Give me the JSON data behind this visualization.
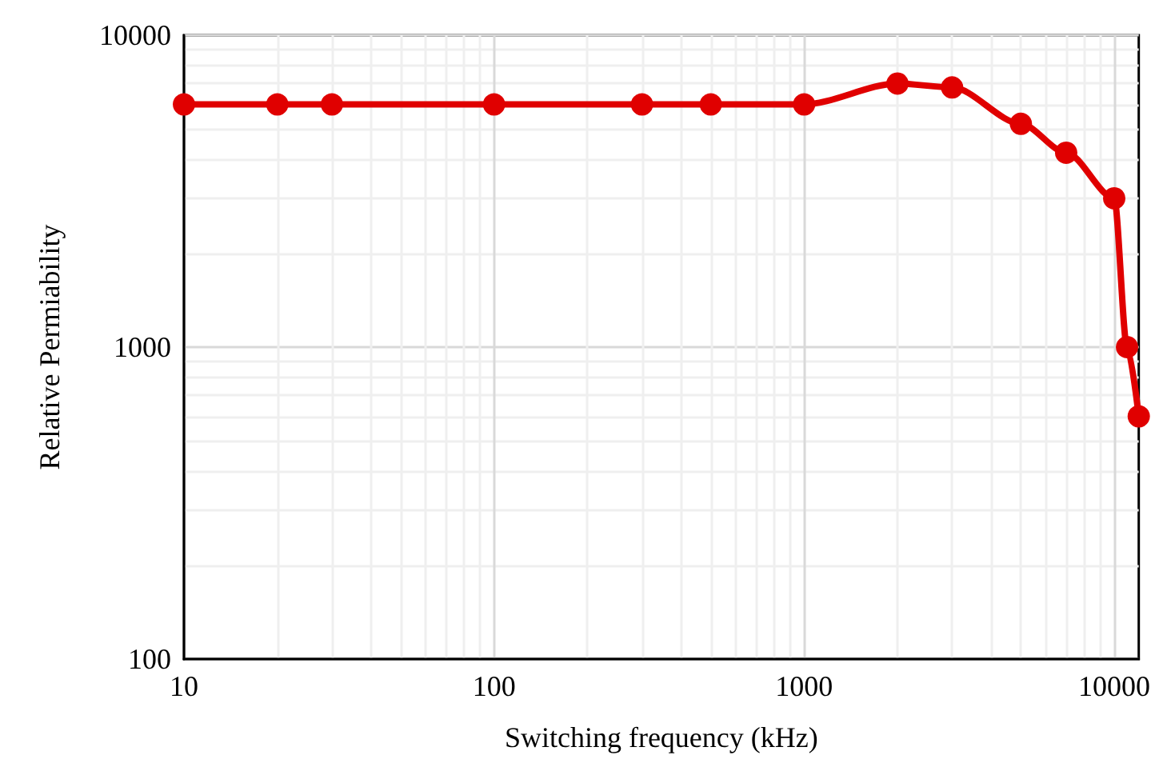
{
  "chart_data": {
    "type": "line",
    "xlabel": "Switching frequency (kHz)",
    "ylabel": "Relative Permiability",
    "x": [
      10,
      20,
      30,
      100,
      300,
      500,
      1000,
      2000,
      3000,
      5000,
      7000,
      10000,
      11000,
      12000
    ],
    "series": [
      {
        "color": "#e00000",
        "values": [
          6000,
          6000,
          6000,
          6000,
          6000,
          6000,
          6000,
          7000,
          6800,
          5200,
          4200,
          3000,
          1000,
          600
        ]
      }
    ],
    "log": "xy",
    "xlim": [
      10,
      12000
    ],
    "xticks": [
      10,
      100,
      1000,
      10000
    ],
    "ylim": [
      100,
      10000
    ],
    "yticks": [
      100,
      1000,
      10000
    ],
    "grid": true,
    "marker": "circle",
    "line_style": "solid"
  }
}
